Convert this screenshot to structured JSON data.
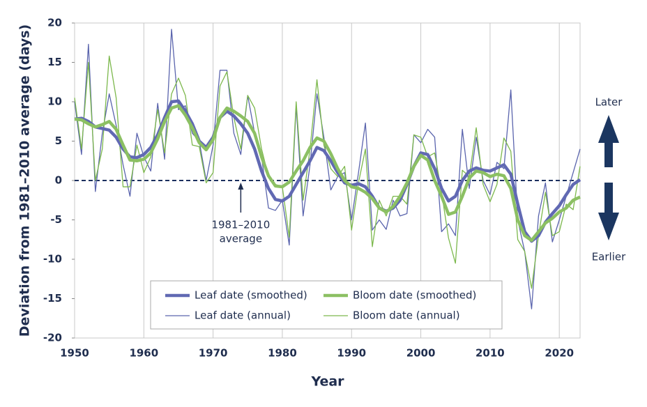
{
  "chart_data": {
    "type": "line",
    "x_label": "Year",
    "y_label": "Deviation from 1981–2010 average (days)",
    "x": [
      1950,
      1951,
      1952,
      1953,
      1954,
      1955,
      1956,
      1957,
      1958,
      1959,
      1960,
      1961,
      1962,
      1963,
      1964,
      1965,
      1966,
      1967,
      1968,
      1969,
      1970,
      1971,
      1972,
      1973,
      1974,
      1975,
      1976,
      1977,
      1978,
      1979,
      1980,
      1981,
      1982,
      1983,
      1984,
      1985,
      1986,
      1987,
      1988,
      1989,
      1990,
      1991,
      1992,
      1993,
      1994,
      1995,
      1996,
      1997,
      1998,
      1999,
      2000,
      2001,
      2002,
      2003,
      2004,
      2005,
      2006,
      2007,
      2008,
      2009,
      2010,
      2011,
      2012,
      2013,
      2014,
      2015,
      2016,
      2017,
      2018,
      2019,
      2020,
      2021,
      2022,
      2023
    ],
    "series": [
      {
        "name": "Leaf date (annual)",
        "color": "#5a64ad",
        "line_width": 1.3,
        "values": [
          10,
          3.3,
          17.3,
          -1.4,
          6,
          11,
          7,
          2,
          -2,
          6,
          3,
          1.2,
          9.8,
          2.7,
          19.2,
          9,
          9.5,
          6,
          5,
          0,
          4.5,
          14,
          14,
          6,
          3.3,
          10.8,
          6,
          3,
          -3.5,
          -3.8,
          -2.5,
          -8.2,
          9.5,
          -4.5,
          2,
          11,
          5.5,
          -1.2,
          0.5,
          1,
          -5,
          1,
          7.3,
          -6.3,
          -5,
          -6.2,
          -2.5,
          -4.5,
          -4.2,
          5.8,
          4.8,
          6.5,
          5.5,
          -6.5,
          -5.5,
          -7,
          6.5,
          -1,
          5.5,
          0,
          -1.8,
          2.3,
          1.5,
          11.5,
          -5,
          -9,
          -16.3,
          -4.5,
          -0.3,
          -7.8,
          -5,
          -2,
          1,
          4
        ]
      },
      {
        "name": "Bloom date (annual)",
        "color": "#7cb84c",
        "line_width": 1.3,
        "values": [
          10.5,
          4,
          15,
          0,
          4,
          15.8,
          10.5,
          -0.8,
          -0.8,
          4.5,
          1,
          3,
          9,
          3.5,
          11,
          13,
          10.8,
          4.5,
          4.3,
          -0.3,
          1,
          12,
          13.8,
          8,
          4,
          10.8,
          9.2,
          4,
          0.5,
          -0.5,
          -0.8,
          -7.2,
          10,
          -2.5,
          4,
          12.8,
          4.5,
          1.5,
          0.5,
          1.8,
          -6.3,
          -0.3,
          4,
          -8.4,
          -2.5,
          -4.5,
          -2,
          -2,
          -3,
          5.8,
          5.5,
          3,
          3.5,
          -1.5,
          -7.3,
          -10.5,
          1.3,
          0.5,
          6.7,
          -0.5,
          -2.7,
          -0.5,
          5.4,
          3.7,
          -7.5,
          -9,
          -13.7,
          -7,
          -1.5,
          -7,
          -6.5,
          -3,
          -3.7,
          1.8
        ]
      },
      {
        "name": "Leaf date (smoothed)",
        "color": "#6169b3",
        "line_width": 4.5,
        "values": [
          7.8,
          7.9,
          7.5,
          6.8,
          6.6,
          6.4,
          5.5,
          4,
          3,
          2.9,
          3.3,
          4.2,
          5.8,
          8,
          10,
          10.1,
          8.8,
          7.2,
          5,
          4.2,
          5.5,
          8,
          8.8,
          8.2,
          7.2,
          6,
          4,
          1.2,
          -1,
          -2.4,
          -2.6,
          -2,
          -0.5,
          1,
          2.5,
          4.2,
          3.8,
          2.5,
          1,
          -0.3,
          -0.6,
          -0.4,
          -0.8,
          -2,
          -3.5,
          -3.9,
          -3.5,
          -2.5,
          -0.5,
          1.8,
          3.5,
          3.3,
          1.5,
          -1,
          -2.6,
          -2,
          0,
          1.2,
          1.6,
          1.3,
          1.2,
          1.6,
          2,
          0.8,
          -3,
          -6.5,
          -7.7,
          -7,
          -5.3,
          -4.2,
          -3.2,
          -1.8,
          -0.5,
          0.1
        ]
      },
      {
        "name": "Bloom date (smoothed)",
        "color": "#8cc063",
        "line_width": 4.5,
        "values": [
          7.8,
          7.7,
          7.2,
          6.8,
          7.1,
          7.5,
          6.5,
          4.5,
          2.6,
          2.5,
          2.7,
          3.5,
          5.3,
          7.5,
          9.2,
          9.5,
          8.3,
          6.7,
          4.8,
          3.9,
          5.2,
          8,
          9.2,
          8.8,
          8.2,
          7.5,
          6,
          3,
          0.6,
          -0.7,
          -0.8,
          -0.2,
          1.2,
          2.5,
          4.2,
          5.4,
          5,
          3.4,
          1.5,
          0,
          -0.8,
          -1,
          -1.5,
          -2.3,
          -3.5,
          -4,
          -3.3,
          -2,
          -0.3,
          1.8,
          3.2,
          2.6,
          0,
          -2,
          -4.3,
          -4,
          -2,
          0.3,
          1.2,
          1,
          0.5,
          0.8,
          0.6,
          -1,
          -5,
          -7,
          -7.6,
          -6.5,
          -5.4,
          -4.8,
          -4,
          -3.5,
          -2.5,
          -2.1
        ]
      }
    ],
    "legend_order": [
      2,
      3,
      0,
      1
    ],
    "xlim": [
      1950,
      2023
    ],
    "xticks": [
      1950,
      1960,
      1970,
      1980,
      1990,
      2000,
      2010,
      2020
    ],
    "ylim": [
      -20,
      20
    ],
    "yticks": [
      -20,
      -15,
      -10,
      -5,
      0,
      5,
      10,
      15,
      20
    ],
    "grid": "x",
    "reference_line": {
      "value": 0,
      "label": [
        "1981–2010",
        "average"
      ],
      "label_x": 1974
    },
    "side_labels": {
      "up": "Later",
      "down": "Earlier"
    }
  }
}
